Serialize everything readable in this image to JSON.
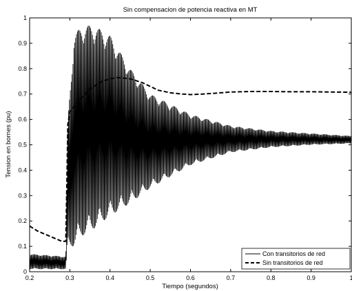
{
  "chart_data": {
    "type": "line",
    "title": "Sin compensacion de potencia reactiva en MT",
    "xlabel": "Tiempo (segundos)",
    "ylabel": "Tension en bornes (pu)",
    "xlim": [
      0.2,
      1.0
    ],
    "ylim": [
      0,
      1
    ],
    "xticks": [
      0.2,
      0.3,
      0.4,
      0.5,
      0.6,
      0.7,
      0.8,
      0.9,
      1
    ],
    "xtick_labels": [
      "0.2",
      "0.3",
      "0.4",
      "0.5",
      "0.6",
      "0.7",
      "0.8",
      "0.9",
      "1"
    ],
    "yticks": [
      0,
      0.1,
      0.2,
      0.3,
      0.4,
      0.5,
      0.6,
      0.7,
      0.8,
      0.9,
      1
    ],
    "ytick_labels": [
      "0",
      "0.1",
      "0.2",
      "0.3",
      "0.4",
      "0.5",
      "0.6",
      "0.7",
      "0.8",
      "0.9",
      "1"
    ],
    "grid": false,
    "legend_position": "bottom-right",
    "series": [
      {
        "name": "Con transitorios de red",
        "style": "solid",
        "color": "#000000",
        "envelope": {
          "x": [
            0.2,
            0.29,
            0.295,
            0.31,
            0.33,
            0.36,
            0.4,
            0.45,
            0.5,
            0.6,
            0.7,
            0.8,
            0.9,
            1.0
          ],
          "upper": [
            0.07,
            0.06,
            0.6,
            0.93,
            0.97,
            0.97,
            0.93,
            0.8,
            0.7,
            0.62,
            0.575,
            0.555,
            0.545,
            0.535
          ],
          "lower": [
            0.01,
            0.01,
            0.1,
            0.1,
            0.14,
            0.17,
            0.22,
            0.27,
            0.33,
            0.42,
            0.47,
            0.49,
            0.5,
            0.505
          ]
        }
      },
      {
        "name": "Sin transitorios de red",
        "style": "dashed",
        "color": "#000000",
        "x": [
          0.2,
          0.22,
          0.25,
          0.28,
          0.29,
          0.292,
          0.295,
          0.3,
          0.32,
          0.35,
          0.38,
          0.4,
          0.42,
          0.45,
          0.48,
          0.5,
          0.52,
          0.55,
          0.58,
          0.6,
          0.63,
          0.66,
          0.7,
          0.75,
          0.8,
          0.85,
          0.9,
          0.95,
          1.0
        ],
        "y": [
          0.18,
          0.16,
          0.14,
          0.12,
          0.12,
          0.3,
          0.58,
          0.63,
          0.67,
          0.72,
          0.75,
          0.76,
          0.765,
          0.76,
          0.745,
          0.73,
          0.715,
          0.705,
          0.7,
          0.698,
          0.7,
          0.703,
          0.708,
          0.71,
          0.71,
          0.709,
          0.709,
          0.708,
          0.707
        ]
      }
    ]
  }
}
